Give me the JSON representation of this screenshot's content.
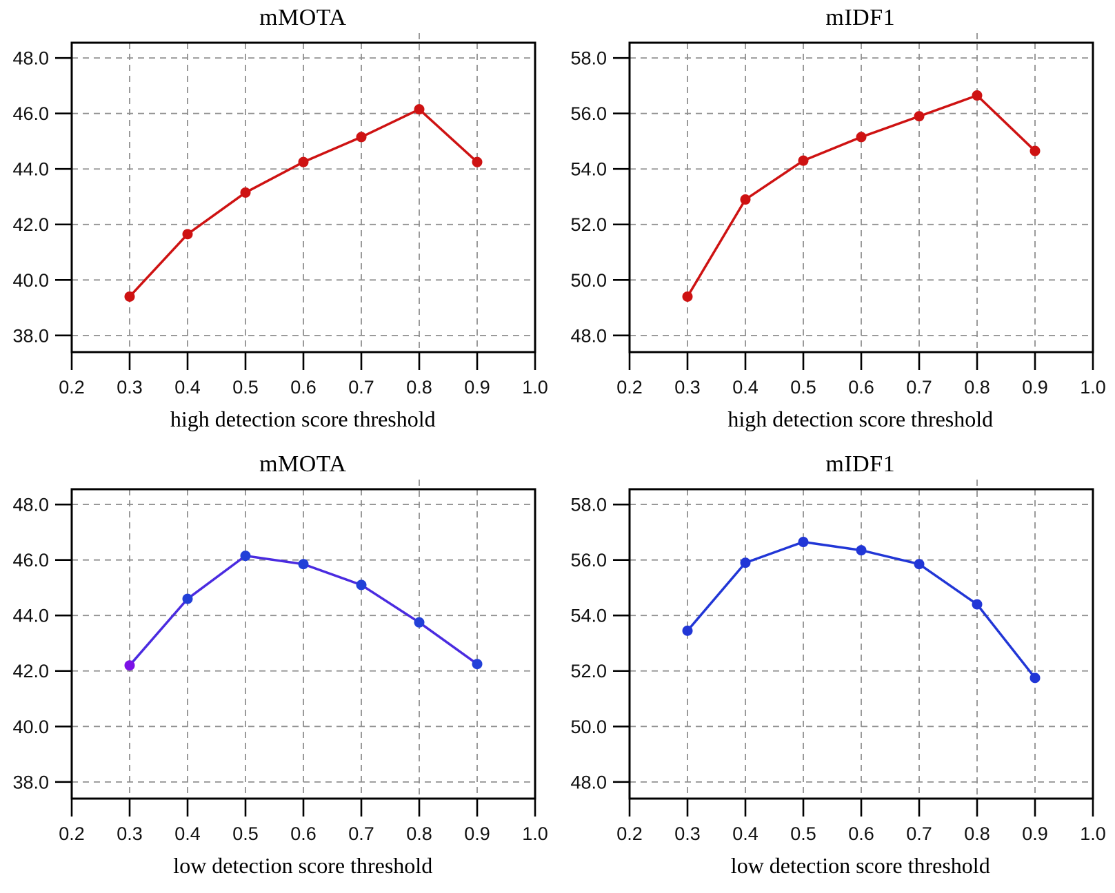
{
  "figure": {
    "background": "#ffffff",
    "grid_color": "#8f8f8f",
    "frame_color": "#000000"
  },
  "chart_data": [
    {
      "type": "line",
      "title": "mMOTA",
      "xlabel": "high detection score threshold",
      "x": [
        0.3,
        0.4,
        0.5,
        0.6,
        0.7,
        0.8,
        0.9
      ],
      "values": [
        39.4,
        41.65,
        43.15,
        44.25,
        45.15,
        46.15,
        44.25
      ],
      "xticks": [
        0.2,
        0.3,
        0.4,
        0.5,
        0.6,
        0.7,
        0.8,
        0.9,
        1.0
      ],
      "yticks": [
        38.0,
        40.0,
        42.0,
        44.0,
        46.0,
        48.0
      ],
      "xlim": [
        0.2,
        1.0
      ],
      "ylim": [
        37.4,
        48.55
      ],
      "grid": true,
      "legend": "none",
      "gridline_overflow_x": 0.8,
      "line_color": "#ce1212",
      "marker_color": "#ce1212"
    },
    {
      "type": "line",
      "title": "mIDF1",
      "xlabel": "high detection score threshold",
      "x": [
        0.3,
        0.4,
        0.5,
        0.6,
        0.7,
        0.8,
        0.9
      ],
      "values": [
        49.4,
        52.9,
        54.3,
        55.15,
        55.9,
        56.65,
        54.65
      ],
      "xticks": [
        0.2,
        0.3,
        0.4,
        0.5,
        0.6,
        0.7,
        0.8,
        0.9,
        1.0
      ],
      "yticks": [
        48.0,
        50.0,
        52.0,
        54.0,
        56.0,
        58.0
      ],
      "xlim": [
        0.2,
        1.0
      ],
      "ylim": [
        47.4,
        58.55
      ],
      "grid": true,
      "legend": "none",
      "gridline_overflow_x": 0.8,
      "line_color": "#ce1212",
      "marker_color": "#ce1212"
    },
    {
      "type": "line",
      "title": "mMOTA",
      "xlabel": "low detection score threshold",
      "x": [
        0.3,
        0.4,
        0.5,
        0.6,
        0.7,
        0.8,
        0.9
      ],
      "values": [
        42.2,
        44.6,
        46.15,
        45.85,
        45.1,
        43.75,
        42.25
      ],
      "xticks": [
        0.2,
        0.3,
        0.4,
        0.5,
        0.6,
        0.7,
        0.8,
        0.9,
        1.0
      ],
      "yticks": [
        38.0,
        40.0,
        42.0,
        44.0,
        46.0,
        48.0
      ],
      "xlim": [
        0.2,
        1.0
      ],
      "ylim": [
        37.4,
        48.55
      ],
      "grid": true,
      "legend": "none",
      "gridline_overflow_x": 0.8,
      "line_color": "#4a2be0",
      "marker_color": "#2240d8",
      "marker_colors": [
        "#7c12e6",
        "#2240d8",
        "#2240d8",
        "#2240d8",
        "#2240d8",
        "#2240d8",
        "#2240d8"
      ]
    },
    {
      "type": "line",
      "title": "mIDF1",
      "xlabel": "low detection score threshold",
      "x": [
        0.3,
        0.4,
        0.5,
        0.6,
        0.7,
        0.8,
        0.9
      ],
      "values": [
        53.45,
        55.9,
        56.65,
        56.35,
        55.85,
        54.4,
        51.75
      ],
      "xticks": [
        0.2,
        0.3,
        0.4,
        0.5,
        0.6,
        0.7,
        0.8,
        0.9,
        1.0
      ],
      "yticks": [
        48.0,
        50.0,
        52.0,
        54.0,
        56.0,
        58.0
      ],
      "xlim": [
        0.2,
        1.0
      ],
      "ylim": [
        47.4,
        58.55
      ],
      "grid": true,
      "legend": "none",
      "gridline_overflow_x": 0.8,
      "line_color": "#2136d6",
      "marker_color": "#2136d6"
    }
  ]
}
